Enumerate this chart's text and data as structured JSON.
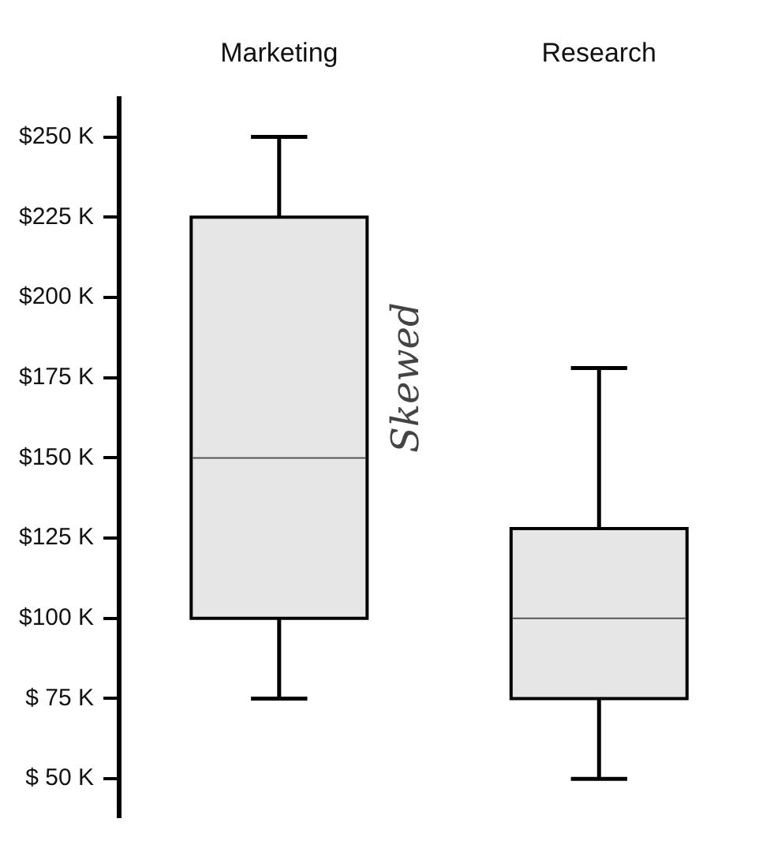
{
  "chart_data": {
    "type": "box",
    "categories": [
      "Marketing",
      "Research"
    ],
    "boxes": [
      {
        "low": 75,
        "q1": 100,
        "median": 150,
        "q3": 225,
        "high": 250
      },
      {
        "low": 50,
        "q1": 75,
        "median": 100,
        "q3": 128,
        "high": 178
      }
    ],
    "color": "#e6e6e6",
    "ylim": [
      38,
      262
    ],
    "yticks": [
      {
        "value": 50,
        "label": "$ 50 K"
      },
      {
        "value": 75,
        "label": "$ 75 K"
      },
      {
        "value": 100,
        "label": "$100 K"
      },
      {
        "value": 125,
        "label": "$125 K"
      },
      {
        "value": 150,
        "label": "$150 K"
      },
      {
        "value": 175,
        "label": "$175 K"
      },
      {
        "value": 200,
        "label": "$200 K"
      },
      {
        "value": 225,
        "label": "$225 K"
      },
      {
        "value": 250,
        "label": "$250 K"
      }
    ],
    "grid": false,
    "annotations": [
      "Skewed"
    ]
  }
}
